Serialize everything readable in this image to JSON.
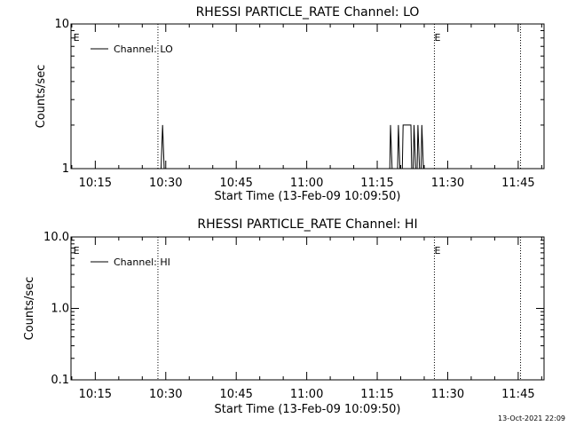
{
  "chart_data": [
    {
      "type": "line",
      "title": "RHESSI PARTICLE_RATE Channel: LO",
      "xlabel": "Start Time (13-Feb-09 10:09:50)",
      "ylabel": "Counts/sec",
      "yscale": "log",
      "ylim": [
        1,
        10
      ],
      "ytick_labels": [
        "1",
        "10"
      ],
      "xlim": [
        "10:09:50",
        "11:50:30"
      ],
      "xtick_labels": [
        "10:15",
        "10:30",
        "10:45",
        "11:00",
        "11:15",
        "11:30",
        "11:45"
      ],
      "legend": {
        "position": "top-left",
        "entries": [
          "Channel: LO"
        ]
      },
      "series": [
        {
          "name": "Channel: LO",
          "points": [
            [
              "10:29:00",
              1
            ],
            [
              "10:29:20",
              2
            ],
            [
              "10:29:40",
              1
            ],
            [
              "11:17:40",
              1
            ],
            [
              "11:17:50",
              2
            ],
            [
              "11:18:10",
              1
            ],
            [
              "11:19:20",
              1
            ],
            [
              "11:19:30",
              2
            ],
            [
              "11:19:50",
              1
            ],
            [
              "11:20:20",
              1
            ],
            [
              "11:20:30",
              2
            ],
            [
              "11:22:10",
              2
            ],
            [
              "11:22:20",
              1
            ],
            [
              "11:22:40",
              1
            ],
            [
              "11:22:50",
              2
            ],
            [
              "11:23:10",
              1
            ],
            [
              "11:23:30",
              1
            ],
            [
              "11:23:40",
              2
            ],
            [
              "11:24:00",
              1
            ],
            [
              "11:24:20",
              1
            ],
            [
              "11:24:30",
              2
            ],
            [
              "11:24:50",
              1
            ]
          ]
        }
      ],
      "markers": [
        {
          "time": "10:10:20",
          "label": "E",
          "dotted_line": false
        },
        {
          "time": "10:28:20",
          "label": "",
          "dotted_line": true
        },
        {
          "time": "11:27:10",
          "label": "E",
          "dotted_line": true
        },
        {
          "time": "11:45:30",
          "label": "",
          "dotted_line": true
        }
      ]
    },
    {
      "type": "line",
      "title": "RHESSI PARTICLE_RATE Channel: HI",
      "xlabel": "Start Time (13-Feb-09 10:09:50)",
      "ylabel": "Counts/sec",
      "yscale": "log",
      "ylim": [
        0.1,
        10
      ],
      "ytick_labels": [
        "0.1",
        "1.0",
        "10.0"
      ],
      "xlim": [
        "10:09:50",
        "11:50:30"
      ],
      "xtick_labels": [
        "10:15",
        "10:30",
        "10:45",
        "11:00",
        "11:15",
        "11:30",
        "11:45"
      ],
      "legend": {
        "position": "top-left",
        "entries": [
          "Channel: HI"
        ]
      },
      "series": [
        {
          "name": "Channel: HI",
          "points": []
        }
      ],
      "markers": [
        {
          "time": "10:10:20",
          "label": "E",
          "dotted_line": false
        },
        {
          "time": "10:28:20",
          "label": "",
          "dotted_line": true
        },
        {
          "time": "11:27:10",
          "label": "E",
          "dotted_line": true
        },
        {
          "time": "11:45:30",
          "label": "",
          "dotted_line": true
        }
      ]
    }
  ],
  "footer": {
    "timestamp": "13-Oct-2021 22:09"
  }
}
